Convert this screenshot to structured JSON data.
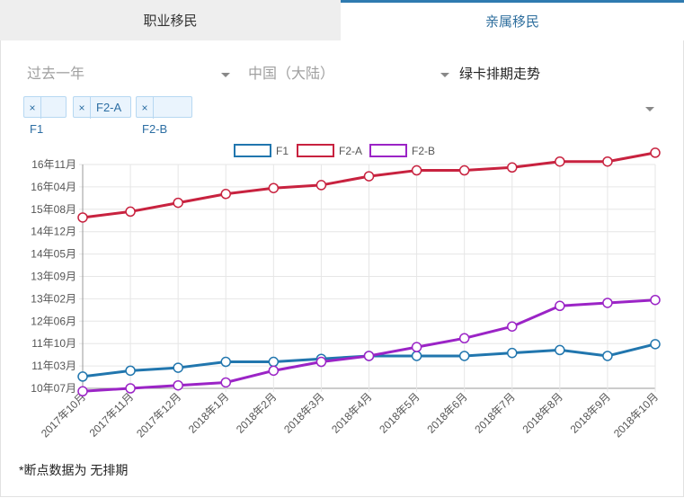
{
  "tabs": [
    {
      "label": "职业移民",
      "active": false
    },
    {
      "label": "亲属移民",
      "active": true
    }
  ],
  "filters": {
    "period": "过去一年",
    "country": "中国（大陆）",
    "chart_kind": "绿卡排期走势"
  },
  "tags": [
    {
      "label": "F1",
      "remove": "×"
    },
    {
      "label": "F2-A",
      "remove": "×"
    },
    {
      "label": "F2-B",
      "remove": "×"
    }
  ],
  "note": "*断点数据为 无排期",
  "colors": {
    "F1": "#2176ae",
    "F2-A": "#c8223f",
    "F2-B": "#9b24c6",
    "accent": "#2f7bb0"
  },
  "chart_data": {
    "type": "line",
    "legend_position": "top",
    "grid": true,
    "categories": [
      "2017年10月",
      "2017年11月",
      "2017年12月",
      "2018年1月",
      "2018年2月",
      "2018年3月",
      "2018年4月",
      "2018年5月",
      "2018年6月",
      "2018年7月",
      "2018年8月",
      "2018年9月",
      "2018年10月"
    ],
    "yticks": [
      "16年11月",
      "16年04月",
      "15年08月",
      "14年12月",
      "14年05月",
      "13年09月",
      "13年02月",
      "12年06月",
      "11年10月",
      "11年03月",
      "10年07月"
    ],
    "ylim": [
      "2010-07",
      "2016-11"
    ],
    "series": [
      {
        "name": "F1",
        "values": [
          "2010-11",
          "2011-01",
          "2011-02",
          "2011-04",
          "2011-04",
          "2011-05",
          "2011-06",
          "2011-06",
          "2011-06",
          "2011-07",
          "2011-08",
          "2011-06",
          "2011-10"
        ]
      },
      {
        "name": "F2-A",
        "values": [
          "2015-05",
          "2015-07",
          "2015-10",
          "2016-01",
          "2016-03",
          "2016-04",
          "2016-07",
          "2016-09",
          "2016-09",
          "2016-10",
          "2016-12",
          "2016-12",
          "2017-03"
        ]
      },
      {
        "name": "F2-B",
        "values": [
          "2010-06",
          "2010-07",
          "2010-08",
          "2010-09",
          "2011-01",
          "2011-04",
          "2011-06",
          "2011-09",
          "2011-12",
          "2012-04",
          "2012-11",
          "2012-12",
          "2013-01"
        ]
      }
    ]
  }
}
